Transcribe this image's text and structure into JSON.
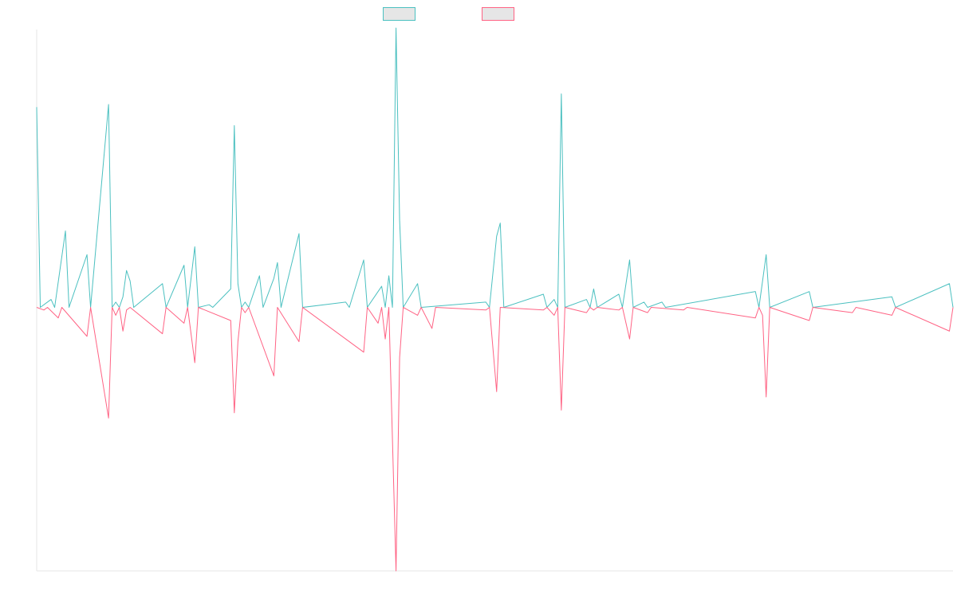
{
  "chart_data": {
    "type": "line",
    "title": "",
    "xlabel": "",
    "ylabel": "",
    "grid": false,
    "legend_position": "top-center",
    "ylim": [
      -100,
      100
    ],
    "series": [
      {
        "color": "#4bc0c0",
        "fill": "#e6e6e6",
        "points": [
          [
            0,
            76
          ],
          [
            1,
            0
          ],
          [
            4,
            3
          ],
          [
            5,
            0
          ],
          [
            8,
            29
          ],
          [
            9,
            0
          ],
          [
            14,
            20
          ],
          [
            15,
            0
          ],
          [
            20,
            77
          ],
          [
            21,
            0
          ],
          [
            22,
            2
          ],
          [
            23,
            0
          ],
          [
            24,
            4
          ],
          [
            25,
            14
          ],
          [
            26,
            10
          ],
          [
            27,
            0
          ],
          [
            35,
            9
          ],
          [
            36,
            0
          ],
          [
            41,
            16
          ],
          [
            42,
            0
          ],
          [
            44,
            23
          ],
          [
            45,
            0
          ],
          [
            48,
            1
          ],
          [
            49,
            0
          ],
          [
            54,
            7
          ],
          [
            55,
            69
          ],
          [
            56,
            9
          ],
          [
            57,
            0
          ],
          [
            58,
            2
          ],
          [
            59,
            0
          ],
          [
            62,
            12
          ],
          [
            63,
            0
          ],
          [
            66,
            11
          ],
          [
            67,
            17
          ],
          [
            68,
            0
          ],
          [
            73,
            28
          ],
          [
            74,
            0
          ],
          [
            86,
            2
          ],
          [
            87,
            0
          ],
          [
            91,
            18
          ],
          [
            92,
            0
          ],
          [
            96,
            8
          ],
          [
            97,
            0
          ],
          [
            98,
            12
          ],
          [
            99,
            0
          ],
          [
            100,
            106
          ],
          [
            101,
            33
          ],
          [
            102,
            0
          ],
          [
            106,
            9
          ],
          [
            107,
            0
          ],
          [
            125,
            2
          ],
          [
            126,
            0
          ],
          [
            128,
            27
          ],
          [
            129,
            32
          ],
          [
            130,
            0
          ],
          [
            141,
            5
          ],
          [
            142,
            0
          ],
          [
            144,
            3
          ],
          [
            145,
            0
          ],
          [
            146,
            81
          ],
          [
            147,
            0
          ],
          [
            153,
            3
          ],
          [
            154,
            0
          ],
          [
            155,
            7
          ],
          [
            156,
            0
          ],
          [
            162,
            5
          ],
          [
            163,
            0
          ],
          [
            165,
            18
          ],
          [
            166,
            0
          ],
          [
            169,
            2
          ],
          [
            170,
            0
          ],
          [
            174,
            2
          ],
          [
            175,
            0
          ],
          [
            200,
            6
          ],
          [
            201,
            0
          ],
          [
            203,
            20
          ],
          [
            204,
            0
          ],
          [
            215,
            6
          ],
          [
            216,
            0
          ],
          [
            238,
            4
          ],
          [
            239,
            0
          ],
          [
            254,
            9
          ],
          [
            255,
            0
          ]
        ]
      },
      {
        "color": "#ff6384",
        "fill": "#e6e6e6",
        "points": [
          [
            0,
            0
          ],
          [
            2,
            -1
          ],
          [
            3,
            0
          ],
          [
            6,
            -4
          ],
          [
            7,
            0
          ],
          [
            14,
            -11
          ],
          [
            15,
            0
          ],
          [
            20,
            -42
          ],
          [
            21,
            0
          ],
          [
            22,
            -3
          ],
          [
            23,
            0
          ],
          [
            24,
            -9
          ],
          [
            25,
            -1
          ],
          [
            26,
            0
          ],
          [
            35,
            -10
          ],
          [
            36,
            0
          ],
          [
            41,
            -6
          ],
          [
            42,
            0
          ],
          [
            44,
            -21
          ],
          [
            45,
            0
          ],
          [
            54,
            -5
          ],
          [
            55,
            -40
          ],
          [
            56,
            -13
          ],
          [
            57,
            0
          ],
          [
            58,
            -2
          ],
          [
            59,
            0
          ],
          [
            66,
            -26
          ],
          [
            67,
            0
          ],
          [
            73,
            -13
          ],
          [
            74,
            0
          ],
          [
            91,
            -17
          ],
          [
            92,
            0
          ],
          [
            95,
            -6
          ],
          [
            96,
            0
          ],
          [
            97,
            -12
          ],
          [
            98,
            0
          ],
          [
            100,
            -100
          ],
          [
            101,
            -19
          ],
          [
            102,
            0
          ],
          [
            106,
            -3
          ],
          [
            107,
            0
          ],
          [
            110,
            -8
          ],
          [
            111,
            0
          ],
          [
            125,
            -1
          ],
          [
            126,
            0
          ],
          [
            128,
            -32
          ],
          [
            129,
            0
          ],
          [
            141,
            -1
          ],
          [
            142,
            0
          ],
          [
            144,
            -3
          ],
          [
            145,
            0
          ],
          [
            146,
            -39
          ],
          [
            147,
            0
          ],
          [
            153,
            -2
          ],
          [
            154,
            0
          ],
          [
            155,
            -1
          ],
          [
            156,
            0
          ],
          [
            162,
            -1
          ],
          [
            163,
            0
          ],
          [
            165,
            -12
          ],
          [
            166,
            0
          ],
          [
            170,
            -2
          ],
          [
            171,
            0
          ],
          [
            180,
            -1
          ],
          [
            181,
            0
          ],
          [
            200,
            -4
          ],
          [
            201,
            0
          ],
          [
            202,
            -3
          ],
          [
            203,
            -34
          ],
          [
            204,
            0
          ],
          [
            215,
            -5
          ],
          [
            216,
            0
          ],
          [
            227,
            -2
          ],
          [
            228,
            0
          ],
          [
            238,
            -3
          ],
          [
            239,
            0
          ],
          [
            254,
            -9
          ],
          [
            255,
            0
          ]
        ]
      }
    ]
  }
}
